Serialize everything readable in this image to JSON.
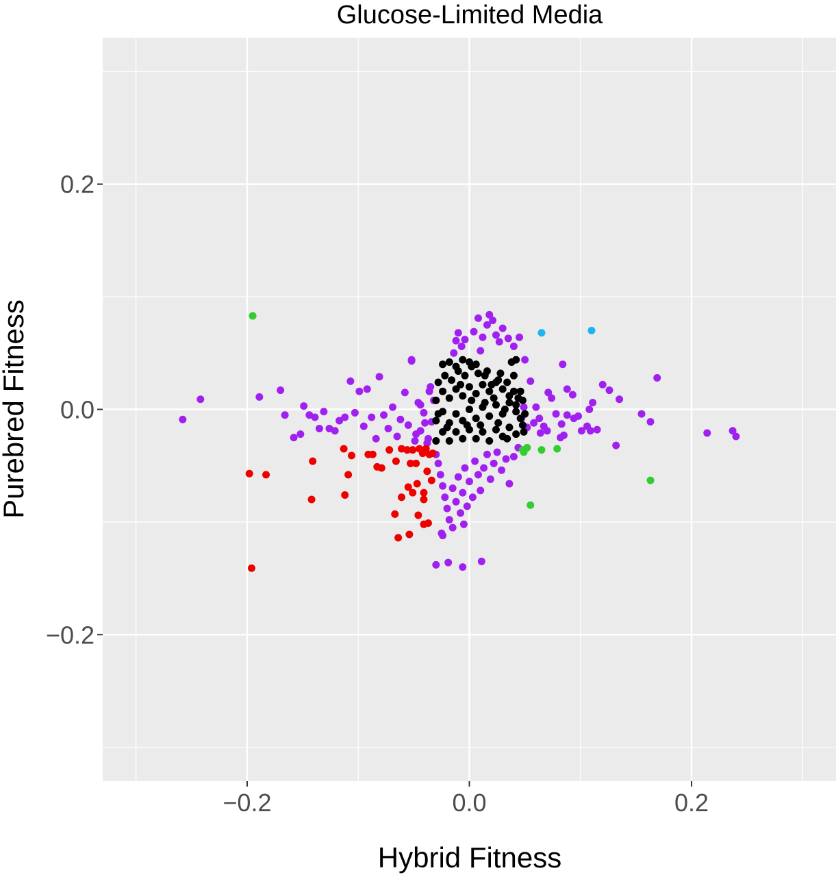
{
  "chart_data": {
    "type": "scatter",
    "title": "Glucose-Limited Media",
    "xlabel": "Hybrid Fitness",
    "ylabel": "Purebred Fitness",
    "xlim": [
      -0.33,
      0.33
    ],
    "ylim": [
      -0.33,
      0.33
    ],
    "x_ticks": [
      -0.2,
      0.0,
      0.2
    ],
    "y_ticks": [
      -0.2,
      0.0,
      0.2
    ],
    "x_tick_labels": [
      "−0.2",
      "0.0",
      "0.2"
    ],
    "y_tick_labels": [
      "−0.2",
      "0.0",
      "0.2"
    ],
    "grid": true,
    "background": "#ebebeb",
    "legend": "none",
    "series": [
      {
        "color": "#a020f0",
        "points": [
          [
            -0.258,
            -0.009
          ],
          [
            -0.242,
            0.009
          ],
          [
            -0.189,
            0.011
          ],
          [
            -0.17,
            0.017
          ],
          [
            -0.166,
            -0.005
          ],
          [
            -0.158,
            -0.025
          ],
          [
            -0.152,
            -0.022
          ],
          [
            -0.149,
            0.003
          ],
          [
            -0.144,
            -0.005
          ],
          [
            -0.139,
            -0.007
          ],
          [
            -0.135,
            -0.017
          ],
          [
            -0.131,
            -0.002
          ],
          [
            -0.126,
            -0.017
          ],
          [
            -0.121,
            -0.019
          ],
          [
            -0.117,
            -0.01
          ],
          [
            -0.112,
            -0.007
          ],
          [
            -0.107,
            0.025
          ],
          [
            -0.103,
            -0.003
          ],
          [
            -0.099,
            0.016
          ],
          [
            -0.095,
            -0.015
          ],
          [
            -0.092,
            0.018
          ],
          [
            -0.088,
            -0.007
          ],
          [
            -0.084,
            -0.026
          ],
          [
            -0.081,
            0.029
          ],
          [
            -0.077,
            -0.005
          ],
          [
            -0.073,
            -0.017
          ],
          [
            -0.069,
            0.002
          ],
          [
            -0.065,
            -0.024
          ],
          [
            -0.062,
            -0.009
          ],
          [
            -0.058,
            0.015
          ],
          [
            -0.055,
            -0.014
          ],
          [
            -0.052,
            0.043
          ],
          [
            -0.049,
            -0.028
          ],
          [
            -0.046,
            0.006
          ],
          [
            -0.044,
            -0.019
          ],
          [
            -0.041,
            -0.003
          ],
          [
            -0.038,
            -0.03
          ],
          [
            -0.036,
            0.016
          ],
          [
            -0.034,
            -0.011
          ],
          [
            -0.032,
            0.008
          ],
          [
            -0.03,
            -0.04
          ],
          [
            -0.028,
            -0.048
          ],
          [
            -0.026,
            -0.058
          ],
          [
            -0.024,
            -0.068
          ],
          [
            -0.022,
            -0.078
          ],
          [
            -0.02,
            -0.088
          ],
          [
            -0.018,
            -0.098
          ],
          [
            -0.015,
            -0.07
          ],
          [
            -0.012,
            -0.082
          ],
          [
            -0.01,
            -0.06
          ],
          [
            -0.008,
            -0.092
          ],
          [
            -0.006,
            -0.074
          ],
          [
            -0.004,
            -0.052
          ],
          [
            -0.002,
            -0.086
          ],
          [
            0.0,
            -0.064
          ],
          [
            0.003,
            -0.078
          ],
          [
            0.005,
            -0.046
          ],
          [
            0.008,
            -0.058
          ],
          [
            0.01,
            -0.072
          ],
          [
            0.013,
            -0.052
          ],
          [
            0.016,
            -0.04
          ],
          [
            0.019,
            -0.062
          ],
          [
            0.022,
            -0.048
          ],
          [
            0.025,
            -0.038
          ],
          [
            0.029,
            -0.054
          ],
          [
            0.033,
            -0.044
          ],
          [
            0.036,
            -0.066
          ],
          [
            0.04,
            -0.042
          ],
          [
            0.044,
            -0.034
          ],
          [
            -0.025,
            -0.11
          ],
          [
            -0.015,
            -0.105
          ],
          [
            -0.005,
            -0.102
          ],
          [
            -0.03,
            -0.138
          ],
          [
            -0.019,
            -0.136
          ],
          [
            -0.006,
            -0.14
          ],
          [
            0.011,
            -0.135
          ],
          [
            -0.024,
            -0.112
          ],
          [
            -0.01,
            0.068
          ],
          [
            -0.012,
            0.061
          ],
          [
            -0.004,
            0.062
          ],
          [
            0.004,
            0.069
          ],
          [
            0.008,
            0.081
          ],
          [
            0.012,
            0.064
          ],
          [
            0.016,
            0.075
          ],
          [
            0.018,
            0.084
          ],
          [
            0.021,
            0.079
          ],
          [
            0.024,
            0.066
          ],
          [
            0.027,
            0.06
          ],
          [
            0.03,
            0.072
          ],
          [
            0.035,
            0.063
          ],
          [
            0.04,
            0.056
          ],
          [
            0.045,
            0.064
          ],
          [
            -0.014,
            0.05
          ],
          [
            -0.007,
            0.056
          ],
          [
            0.01,
            0.052
          ],
          [
            -0.052,
            0.044
          ],
          [
            0.05,
            0.044
          ],
          [
            0.055,
            0.025
          ],
          [
            0.06,
            0.002
          ],
          [
            0.063,
            -0.008
          ],
          [
            0.067,
            -0.015
          ],
          [
            0.071,
            0.015
          ],
          [
            0.074,
            0.01
          ],
          [
            0.078,
            -0.004
          ],
          [
            0.083,
            -0.013
          ],
          [
            0.085,
            -0.023
          ],
          [
            0.088,
            -0.005
          ],
          [
            0.093,
            0.013
          ],
          [
            0.098,
            -0.006
          ],
          [
            0.101,
            -0.019
          ],
          [
            0.106,
            -0.015
          ],
          [
            0.108,
            0.0
          ],
          [
            0.111,
            0.006
          ],
          [
            0.115,
            -0.018
          ],
          [
            0.12,
            0.022
          ],
          [
            0.126,
            0.017
          ],
          [
            0.132,
            -0.032
          ],
          [
            0.135,
            0.009
          ],
          [
            0.155,
            -0.004
          ],
          [
            0.163,
            -0.011
          ],
          [
            0.169,
            0.028
          ],
          [
            0.214,
            -0.021
          ],
          [
            0.237,
            -0.019
          ],
          [
            0.24,
            -0.024
          ],
          [
            0.084,
            0.04
          ],
          [
            0.088,
            0.018
          ],
          [
            0.109,
            -0.019
          ],
          [
            0.058,
            -0.012
          ],
          [
            0.064,
            -0.021
          ],
          [
            0.07,
            -0.019
          ],
          [
            0.082,
            -0.025
          ],
          [
            0.094,
            -0.008
          ],
          [
            0.047,
            -0.008
          ],
          [
            0.052,
            -0.016
          ],
          [
            0.049,
            0.002
          ],
          [
            -0.04,
            -0.012
          ],
          [
            -0.044,
            0.004
          ],
          [
            -0.048,
            -0.022
          ],
          [
            -0.037,
            -0.026
          ],
          [
            -0.035,
            0.02
          ]
        ]
      },
      {
        "color": "#000000",
        "points": [
          [
            -0.03,
            -0.028
          ],
          [
            -0.024,
            -0.02
          ],
          [
            -0.018,
            -0.028
          ],
          [
            -0.012,
            -0.02
          ],
          [
            -0.006,
            -0.026
          ],
          [
            0.0,
            -0.018
          ],
          [
            0.006,
            -0.026
          ],
          [
            0.012,
            -0.02
          ],
          [
            0.018,
            -0.028
          ],
          [
            0.024,
            -0.018
          ],
          [
            0.03,
            -0.024
          ],
          [
            0.036,
            -0.016
          ],
          [
            0.042,
            -0.022
          ],
          [
            0.048,
            -0.014
          ],
          [
            -0.03,
            -0.01
          ],
          [
            -0.024,
            -0.002
          ],
          [
            -0.018,
            -0.012
          ],
          [
            -0.012,
            -0.004
          ],
          [
            -0.006,
            -0.01
          ],
          [
            0.0,
            0.0
          ],
          [
            0.006,
            -0.008
          ],
          [
            0.012,
            0.002
          ],
          [
            0.018,
            -0.006
          ],
          [
            0.024,
            0.004
          ],
          [
            0.03,
            -0.004
          ],
          [
            0.036,
            0.006
          ],
          [
            0.042,
            -0.002
          ],
          [
            0.048,
            0.008
          ],
          [
            -0.03,
            0.008
          ],
          [
            -0.024,
            0.016
          ],
          [
            -0.018,
            0.01
          ],
          [
            -0.012,
            0.018
          ],
          [
            -0.006,
            0.012
          ],
          [
            0.0,
            0.02
          ],
          [
            0.006,
            0.014
          ],
          [
            0.012,
            0.022
          ],
          [
            0.018,
            0.016
          ],
          [
            0.024,
            0.024
          ],
          [
            0.03,
            0.018
          ],
          [
            0.036,
            0.012
          ],
          [
            0.042,
            0.004
          ],
          [
            0.046,
            -0.008
          ],
          [
            -0.028,
            0.024
          ],
          [
            -0.022,
            0.03
          ],
          [
            -0.016,
            0.026
          ],
          [
            -0.01,
            0.034
          ],
          [
            -0.004,
            0.03
          ],
          [
            0.002,
            0.038
          ],
          [
            0.008,
            0.032
          ],
          [
            0.014,
            0.03
          ],
          [
            0.02,
            0.022
          ],
          [
            0.026,
            0.026
          ],
          [
            -0.024,
            0.04
          ],
          [
            -0.018,
            0.042
          ],
          [
            -0.012,
            0.038
          ],
          [
            -0.006,
            0.044
          ],
          [
            0.0,
            0.042
          ],
          [
            0.006,
            0.04
          ],
          [
            0.016,
            0.034
          ],
          [
            0.028,
            0.032
          ],
          [
            0.034,
            0.024
          ],
          [
            0.04,
            0.016
          ],
          [
            0.044,
            0.01
          ],
          [
            0.05,
            -0.004
          ],
          [
            0.049,
            -0.02
          ],
          [
            0.038,
            0.042
          ],
          [
            0.042,
            0.044
          ],
          [
            -0.008,
            0.022
          ],
          [
            0.002,
            0.008
          ],
          [
            0.01,
            -0.014
          ],
          [
            -0.02,
            -0.016
          ],
          [
            0.026,
            -0.012
          ],
          [
            0.034,
            -0.026
          ],
          [
            0.04,
            0.03
          ],
          [
            -0.028,
            -0.004
          ],
          [
            0.022,
            0.01
          ],
          [
            -0.002,
            -0.014
          ],
          [
            0.014,
            0.006
          ],
          [
            0.032,
            0.0
          ],
          [
            0.046,
            0.016
          ]
        ]
      },
      {
        "color": "#ee0000",
        "points": [
          [
            -0.198,
            -0.057
          ],
          [
            -0.183,
            -0.058
          ],
          [
            -0.196,
            -0.141
          ],
          [
            -0.141,
            -0.046
          ],
          [
            -0.142,
            -0.08
          ],
          [
            -0.113,
            -0.035
          ],
          [
            -0.109,
            -0.058
          ],
          [
            -0.112,
            -0.076
          ],
          [
            -0.106,
            -0.041
          ],
          [
            -0.091,
            -0.04
          ],
          [
            -0.087,
            -0.04
          ],
          [
            -0.083,
            -0.051
          ],
          [
            -0.079,
            -0.052
          ],
          [
            -0.072,
            -0.036
          ],
          [
            -0.066,
            -0.046
          ],
          [
            -0.061,
            -0.035
          ],
          [
            -0.056,
            -0.036
          ],
          [
            -0.053,
            -0.048
          ],
          [
            -0.051,
            -0.036
          ],
          [
            -0.048,
            -0.048
          ],
          [
            -0.045,
            -0.035
          ],
          [
            -0.042,
            -0.039
          ],
          [
            -0.039,
            -0.035
          ],
          [
            -0.036,
            -0.04
          ],
          [
            -0.033,
            -0.039
          ],
          [
            -0.034,
            -0.063
          ],
          [
            -0.038,
            -0.055
          ],
          [
            -0.047,
            -0.066
          ],
          [
            -0.051,
            -0.074
          ],
          [
            -0.055,
            -0.069
          ],
          [
            -0.061,
            -0.078
          ],
          [
            -0.067,
            -0.093
          ],
          [
            -0.064,
            -0.114
          ],
          [
            -0.054,
            -0.111
          ],
          [
            -0.046,
            -0.094
          ],
          [
            -0.041,
            -0.102
          ],
          [
            -0.037,
            -0.101
          ],
          [
            -0.041,
            -0.074
          ],
          [
            -0.041,
            -0.08
          ]
        ]
      },
      {
        "color": "#33cc33",
        "points": [
          [
            -0.195,
            0.083
          ],
          [
            0.048,
            -0.036
          ],
          [
            0.049,
            -0.038
          ],
          [
            0.052,
            -0.034
          ],
          [
            0.065,
            -0.036
          ],
          [
            0.079,
            -0.035
          ],
          [
            0.055,
            -0.085
          ],
          [
            0.163,
            -0.063
          ]
        ]
      },
      {
        "color": "#1eb4f0",
        "points": [
          [
            0.065,
            0.068
          ],
          [
            0.11,
            0.07
          ]
        ]
      }
    ]
  }
}
